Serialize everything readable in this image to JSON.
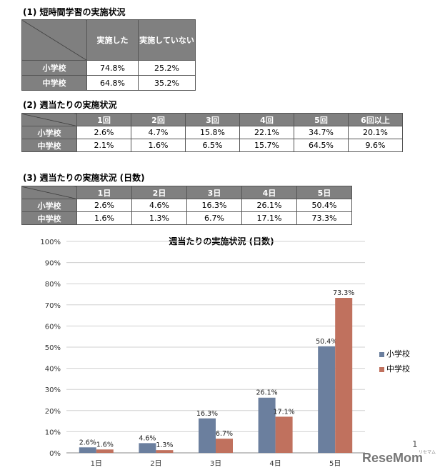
{
  "table1": {
    "title": "(1) 短時間学習の実施状況",
    "headers": [
      "実施した",
      "実施していない"
    ],
    "rows": [
      {
        "label": "小学校",
        "values": [
          "74.8%",
          "25.2%"
        ]
      },
      {
        "label": "中学校",
        "values": [
          "64.8%",
          "35.2%"
        ]
      }
    ]
  },
  "table2": {
    "title": "(2) 週当たりの実施状況",
    "headers": [
      "1回",
      "2回",
      "3回",
      "4回",
      "5回",
      "6回以上"
    ],
    "rows": [
      {
        "label": "小学校",
        "values": [
          "2.6%",
          "4.7%",
          "15.8%",
          "22.1%",
          "34.7%",
          "20.1%"
        ]
      },
      {
        "label": "中学校",
        "values": [
          "2.1%",
          "1.6%",
          "6.5%",
          "15.7%",
          "64.5%",
          "9.6%"
        ]
      }
    ]
  },
  "table3": {
    "title": "(3) 週当たりの実施状況 (日数)",
    "headers": [
      "1日",
      "2日",
      "3日",
      "4日",
      "5日"
    ],
    "rows": [
      {
        "label": "小学校",
        "values": [
          "2.6%",
          "4.6%",
          "16.3%",
          "26.1%",
          "50.4%"
        ]
      },
      {
        "label": "中学校",
        "values": [
          "1.6%",
          "1.3%",
          "6.7%",
          "17.1%",
          "73.3%"
        ]
      }
    ]
  },
  "chart_data": {
    "type": "bar",
    "title": "週当たりの実施状況 (日数)",
    "categories": [
      "1日",
      "2日",
      "3日",
      "4日",
      "5日"
    ],
    "series": [
      {
        "name": "小学校",
        "values": [
          2.6,
          4.6,
          16.3,
          26.1,
          50.4
        ],
        "color": "#6b7f9e"
      },
      {
        "name": "中学校",
        "values": [
          1.6,
          1.3,
          6.7,
          17.1,
          73.3
        ],
        "color": "#c0715e"
      }
    ],
    "ylim": [
      0,
      100
    ],
    "yticks": [
      "0%",
      "10%",
      "20%",
      "30%",
      "40%",
      "50%",
      "60%",
      "70%",
      "80%",
      "90%",
      "100%"
    ],
    "grid": true,
    "legend": "right"
  },
  "footer": {
    "page_number": "1",
    "logo": "ReseMom",
    "logo_sub": "リセマム"
  }
}
